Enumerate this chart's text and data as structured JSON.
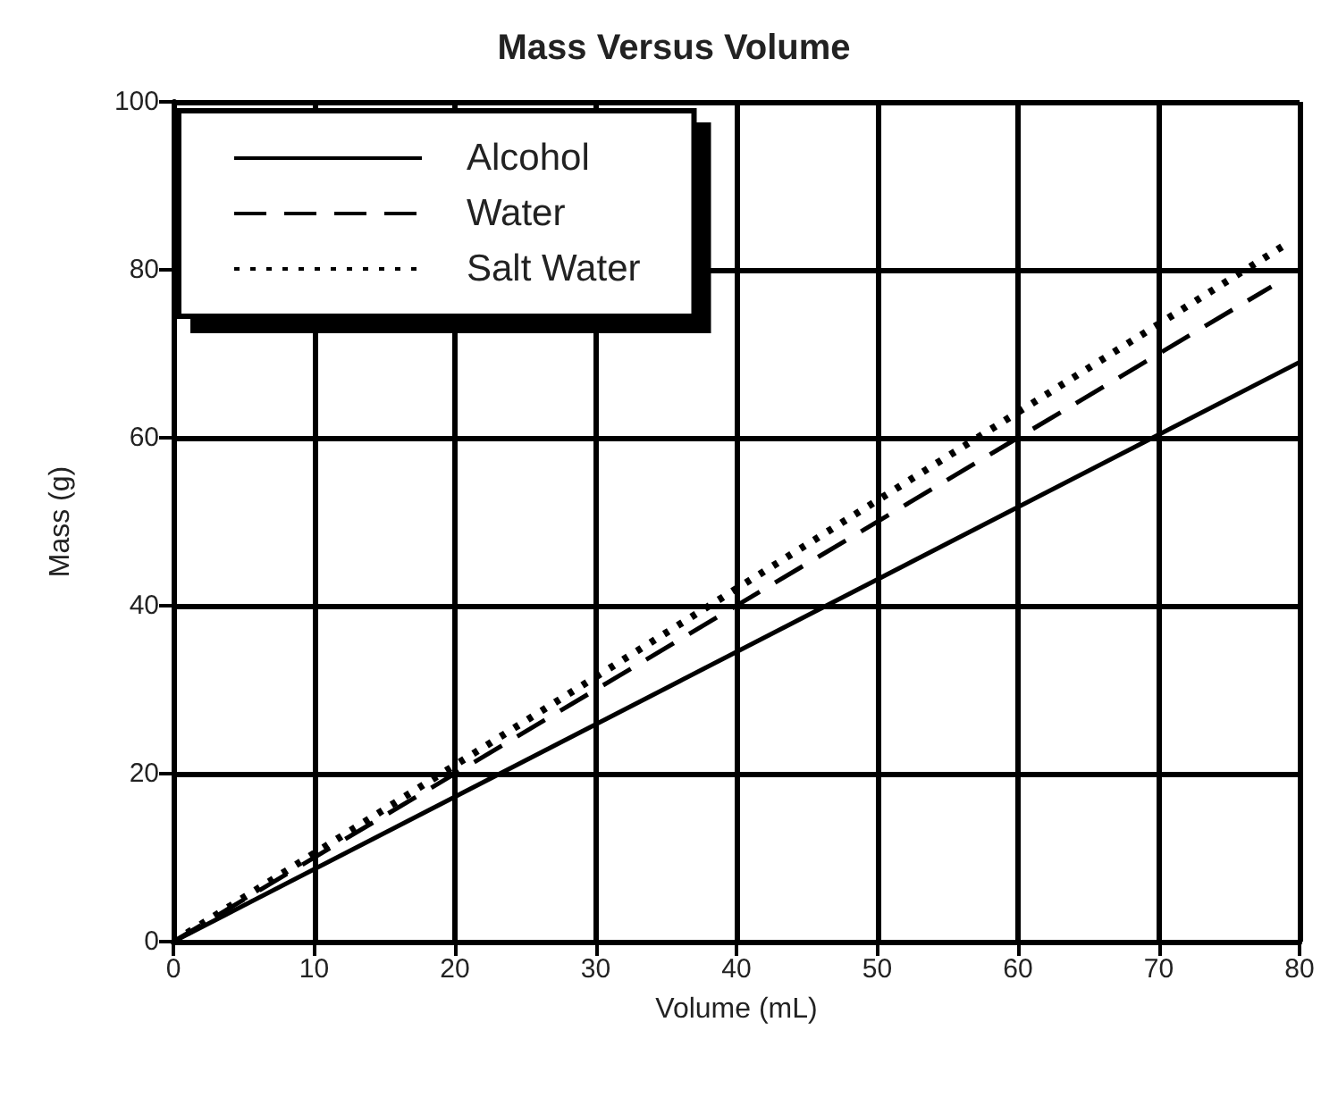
{
  "chart_data": {
    "type": "line",
    "title": "Mass Versus Volume",
    "xlabel": "Volume (mL)",
    "ylabel": "Mass (g)",
    "series": [
      {
        "name": "Alcohol",
        "color": "#000000",
        "line_style": "solid",
        "x": [
          0,
          80
        ],
        "values": [
          0,
          69
        ]
      },
      {
        "name": "Water",
        "color": "#000000",
        "line_style": "dashed",
        "x": [
          0,
          78
        ],
        "values": [
          0,
          78
        ]
      },
      {
        "name": "Salt Water",
        "color": "#000000",
        "line_style": "dotted",
        "x": [
          0,
          79
        ],
        "values": [
          0,
          83
        ]
      }
    ],
    "xlim": [
      0,
      80
    ],
    "xticks": [
      0,
      10,
      20,
      30,
      40,
      50,
      60,
      70,
      80
    ],
    "ylim": [
      0,
      100
    ],
    "yticks": [
      0,
      20,
      40,
      60,
      80,
      100
    ],
    "grid": true,
    "legend": "top left",
    "marker": "none"
  }
}
